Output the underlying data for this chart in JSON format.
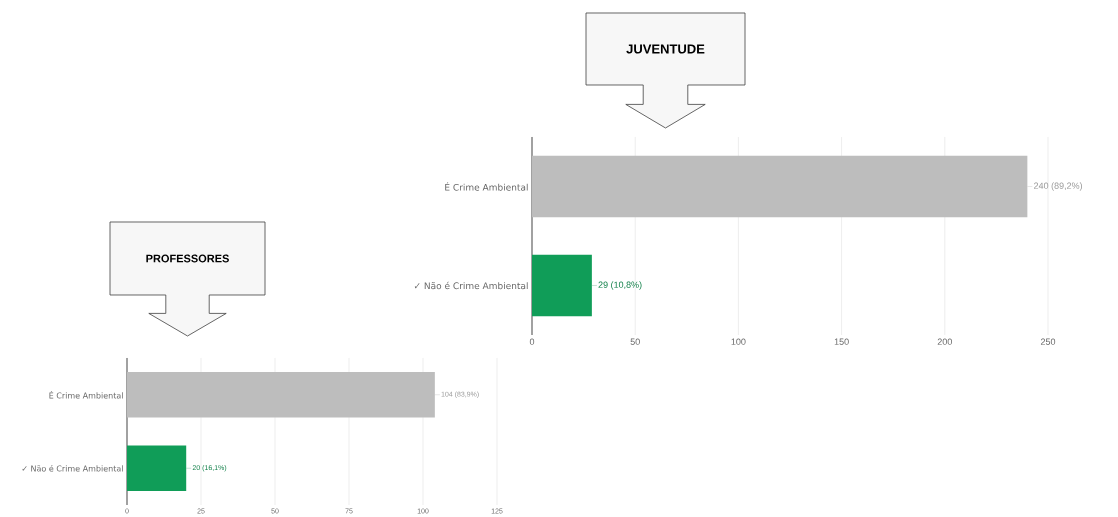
{
  "chart_data": [
    {
      "type": "bar",
      "orientation": "horizontal",
      "title": "JUVENTUDE",
      "categories": [
        "É Crime Ambiental",
        "✓ Não é Crime Ambiental"
      ],
      "values": [
        240,
        29
      ],
      "colors": [
        "#bdbdbd",
        "#109d58"
      ],
      "value_labels": [
        "240 (89,2%)",
        "29 (10,8%)"
      ],
      "xlim": [
        0,
        250
      ],
      "xticks": [
        0,
        50,
        100,
        150,
        200,
        250
      ],
      "grid": "x"
    },
    {
      "type": "bar",
      "orientation": "horizontal",
      "title": "PROFESSORES",
      "categories": [
        "É Crime Ambiental",
        "✓ Não é Crime Ambiental"
      ],
      "values": [
        104,
        20
      ],
      "colors": [
        "#bdbdbd",
        "#109d58"
      ],
      "value_labels": [
        "104 (83,9%)",
        "20 (16,1%)"
      ],
      "xlim": [
        0,
        125
      ],
      "xticks": [
        0,
        25,
        50,
        75,
        100,
        125
      ],
      "grid": "x"
    }
  ]
}
